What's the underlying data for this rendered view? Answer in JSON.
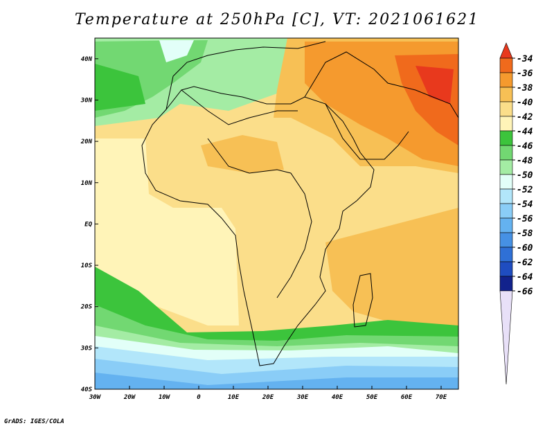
{
  "title": "Temperature at 250hPa [C], VT: 2021061621",
  "credit": "GrADS: IGES/COLA",
  "map": {
    "region": "Africa and Middle East",
    "lon_range": [
      -30,
      75
    ],
    "lat_range": [
      -40,
      45
    ],
    "x_ticks": [
      "30W",
      "20W",
      "10W",
      "0",
      "10E",
      "20E",
      "30E",
      "40E",
      "50E",
      "60E",
      "70E"
    ],
    "y_ticks": [
      "40N",
      "30N",
      "20N",
      "10N",
      "EQ",
      "10S",
      "20S",
      "30S",
      "40S"
    ]
  },
  "colorbar": {
    "labels": [
      "-34",
      "-36",
      "-38",
      "-40",
      "-42",
      "-44",
      "-46",
      "-48",
      "-50",
      "-52",
      "-54",
      "-56",
      "-58",
      "-60",
      "-62",
      "-64",
      "-66"
    ],
    "colors": [
      "#e8391d",
      "#f06a1c",
      "#f59a2e",
      "#f7c055",
      "#fbde8a",
      "#fff4b8",
      "#3cc43c",
      "#72d872",
      "#a4eca4",
      "#e2fff8",
      "#b2e6fa",
      "#8acdf7",
      "#64b2f0",
      "#4691e4",
      "#2f70d6",
      "#1f4dc0",
      "#12228c",
      "#e8e0f8"
    ]
  }
}
